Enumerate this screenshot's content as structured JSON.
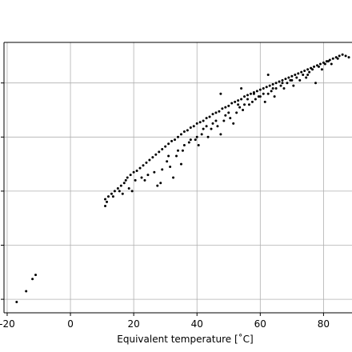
{
  "chart_data": {
    "type": "scatter",
    "title": "",
    "xlabel": "Equivalent temperature [˚C]",
    "ylabel": "",
    "xlim": [
      -21,
      89
    ],
    "ylim": [
      0,
      1
    ],
    "grid": true,
    "xticks": [
      -20,
      0,
      20,
      40,
      60,
      80
    ],
    "x_tick_labels": [
      "-20",
      "0",
      "20",
      "40",
      "60",
      "80"
    ],
    "yticks": [
      0.05,
      0.25,
      0.45,
      0.65,
      0.85
    ],
    "marker_color": "#000000",
    "series": [
      {
        "points": [
          [
            -17,
            0.04
          ],
          [
            -14,
            0.08
          ],
          [
            -12,
            0.125
          ],
          [
            -11,
            0.14
          ],
          [
            11,
            0.42
          ],
          [
            12,
            0.43
          ],
          [
            11.5,
            0.41
          ],
          [
            13,
            0.44
          ],
          [
            14,
            0.45
          ],
          [
            15,
            0.46
          ],
          [
            16,
            0.47
          ],
          [
            17,
            0.48
          ],
          [
            17.5,
            0.49
          ],
          [
            18,
            0.5
          ],
          [
            19,
            0.51
          ],
          [
            20,
            0.52
          ],
          [
            21,
            0.525
          ],
          [
            22,
            0.535
          ],
          [
            23,
            0.545
          ],
          [
            24,
            0.555
          ],
          [
            25,
            0.565
          ],
          [
            26,
            0.575
          ],
          [
            27,
            0.585
          ],
          [
            28,
            0.595
          ],
          [
            29,
            0.605
          ],
          [
            30,
            0.615
          ],
          [
            31,
            0.625
          ],
          [
            32,
            0.635
          ],
          [
            33,
            0.64
          ],
          [
            34,
            0.65
          ],
          [
            35,
            0.66
          ],
          [
            36,
            0.67
          ],
          [
            37,
            0.675
          ],
          [
            38,
            0.685
          ],
          [
            39,
            0.69
          ],
          [
            40,
            0.7
          ],
          [
            41,
            0.705
          ],
          [
            42,
            0.71
          ],
          [
            43,
            0.72
          ],
          [
            44,
            0.725
          ],
          [
            45,
            0.735
          ],
          [
            46,
            0.74
          ],
          [
            47,
            0.745
          ],
          [
            48,
            0.755
          ],
          [
            49,
            0.76
          ],
          [
            50,
            0.765
          ],
          [
            51,
            0.775
          ],
          [
            52,
            0.78
          ],
          [
            53,
            0.785
          ],
          [
            54,
            0.79
          ],
          [
            55,
            0.8
          ],
          [
            56,
            0.805
          ],
          [
            57,
            0.81
          ],
          [
            58,
            0.815
          ],
          [
            59,
            0.82
          ],
          [
            60,
            0.825
          ],
          [
            61,
            0.83
          ],
          [
            62,
            0.835
          ],
          [
            63,
            0.84
          ],
          [
            64,
            0.845
          ],
          [
            65,
            0.85
          ],
          [
            66,
            0.855
          ],
          [
            67,
            0.86
          ],
          [
            68,
            0.865
          ],
          [
            69,
            0.87
          ],
          [
            70,
            0.875
          ],
          [
            71,
            0.88
          ],
          [
            72,
            0.885
          ],
          [
            73,
            0.89
          ],
          [
            74,
            0.895
          ],
          [
            75,
            0.9
          ],
          [
            76,
            0.905
          ],
          [
            77,
            0.91
          ],
          [
            78,
            0.915
          ],
          [
            79,
            0.92
          ],
          [
            80,
            0.925
          ],
          [
            81,
            0.93
          ],
          [
            82,
            0.935
          ],
          [
            83,
            0.94
          ],
          [
            84,
            0.945
          ],
          [
            85,
            0.95
          ],
          [
            86,
            0.955
          ],
          [
            87,
            0.95
          ],
          [
            88,
            0.945
          ],
          [
            11,
            0.395
          ],
          [
            13.5,
            0.43
          ],
          [
            15.5,
            0.45
          ],
          [
            16.5,
            0.44
          ],
          [
            18.5,
            0.46
          ],
          [
            20.5,
            0.49
          ],
          [
            22.5,
            0.5
          ],
          [
            24.5,
            0.51
          ],
          [
            26.5,
            0.52
          ],
          [
            28.5,
            0.48
          ],
          [
            30.5,
            0.56
          ],
          [
            31.5,
            0.54
          ],
          [
            32.5,
            0.5
          ],
          [
            33.5,
            0.58
          ],
          [
            35.5,
            0.6
          ],
          [
            37.5,
            0.63
          ],
          [
            39.5,
            0.64
          ],
          [
            40.5,
            0.62
          ],
          [
            41.5,
            0.66
          ],
          [
            43.5,
            0.65
          ],
          [
            44.5,
            0.68
          ],
          [
            46.5,
            0.69
          ],
          [
            47.5,
            0.66
          ],
          [
            48.5,
            0.71
          ],
          [
            50.5,
            0.72
          ],
          [
            51.5,
            0.7
          ],
          [
            52.5,
            0.74
          ],
          [
            53.5,
            0.76
          ],
          [
            54.5,
            0.75
          ],
          [
            56.5,
            0.77
          ],
          [
            57.5,
            0.78
          ],
          [
            58.5,
            0.79
          ],
          [
            59.5,
            0.8
          ],
          [
            61.5,
            0.78
          ],
          [
            62.5,
            0.81
          ],
          [
            63.5,
            0.82
          ],
          [
            64.5,
            0.8
          ],
          [
            66.5,
            0.84
          ],
          [
            67.5,
            0.83
          ],
          [
            68.5,
            0.85
          ],
          [
            69.5,
            0.86
          ],
          [
            70.5,
            0.84
          ],
          [
            71.5,
            0.87
          ],
          [
            72.5,
            0.86
          ],
          [
            73.5,
            0.88
          ],
          [
            74.5,
            0.87
          ],
          [
            75.5,
            0.89
          ],
          [
            76.5,
            0.9
          ],
          [
            77.5,
            0.85
          ],
          [
            78.5,
            0.91
          ],
          [
            79.5,
            0.9
          ],
          [
            80.5,
            0.92
          ],
          [
            81.5,
            0.93
          ],
          [
            82.5,
            0.92
          ],
          [
            84.5,
            0.94
          ],
          [
            62.5,
            0.88
          ],
          [
            47.5,
            0.81
          ],
          [
            54,
            0.83
          ],
          [
            35,
            0.55
          ],
          [
            27.5,
            0.47
          ],
          [
            19.5,
            0.45
          ],
          [
            23.5,
            0.49
          ],
          [
            29,
            0.53
          ],
          [
            31,
            0.58
          ],
          [
            34,
            0.6
          ],
          [
            36,
            0.62
          ],
          [
            38,
            0.64
          ],
          [
            42,
            0.68
          ],
          [
            45,
            0.7
          ],
          [
            49,
            0.73
          ],
          [
            55,
            0.77
          ],
          [
            60,
            0.8
          ],
          [
            65,
            0.83
          ],
          [
            70,
            0.86
          ],
          [
            75,
            0.88
          ],
          [
            40,
            0.65
          ],
          [
            43,
            0.69
          ],
          [
            46,
            0.71
          ],
          [
            50,
            0.74
          ],
          [
            53,
            0.77
          ],
          [
            56,
            0.79
          ],
          [
            58,
            0.81
          ],
          [
            61,
            0.81
          ],
          [
            64,
            0.83
          ],
          [
            67,
            0.85
          ]
        ]
      }
    ]
  }
}
